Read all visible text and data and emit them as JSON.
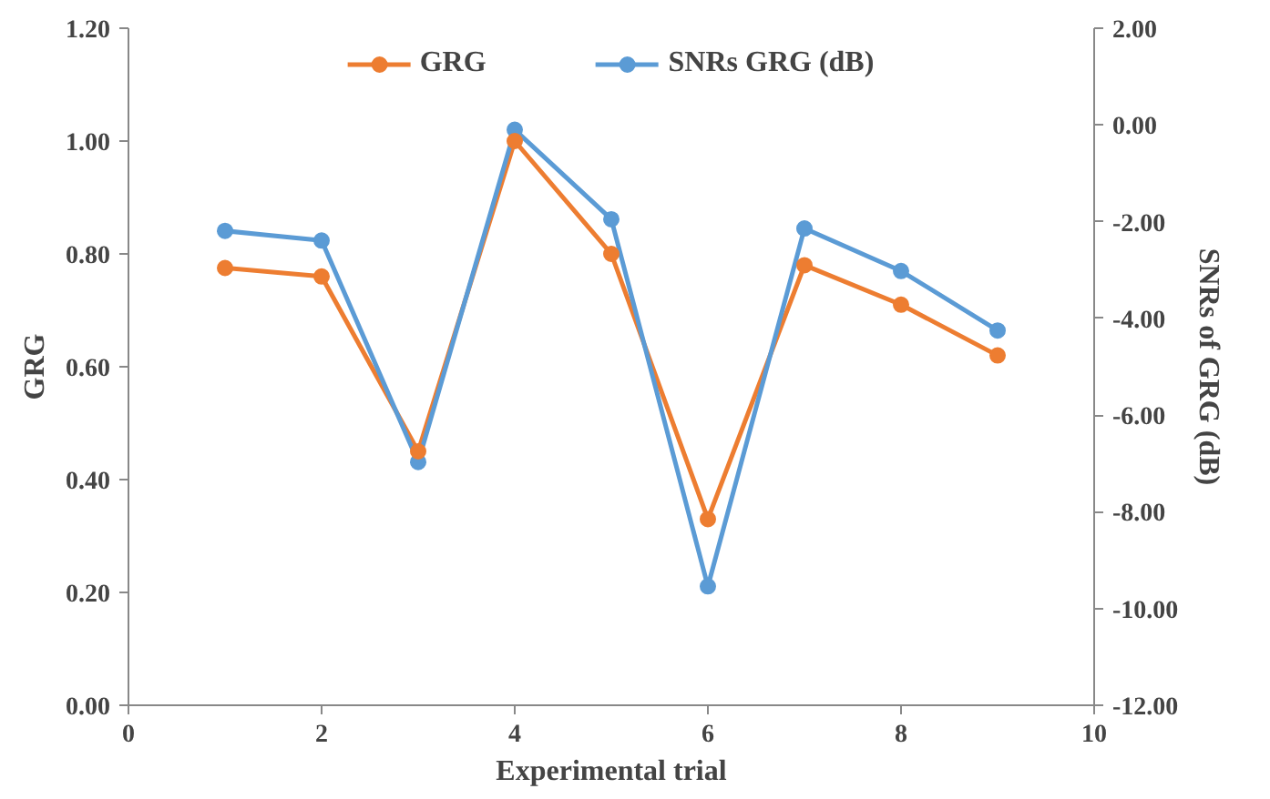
{
  "chart_data": {
    "type": "line",
    "xlabel": "Experimental trial",
    "ylabel": "GRG",
    "y2label": "SNRs of GRG (dB)",
    "x": [
      1,
      2,
      3,
      4,
      5,
      6,
      7,
      8,
      9
    ],
    "series": [
      {
        "name": "GRG",
        "color": "#ed7d31",
        "values": [
          0.775,
          0.76,
          0.45,
          1.0,
          0.8,
          0.33,
          0.78,
          0.71,
          0.62
        ]
      },
      {
        "name": "SNRs GRG (dB)",
        "color": "#5b9bd5",
        "axis": "y2",
        "values": [
          -2.19,
          -2.39,
          -6.97,
          -0.1,
          -1.95,
          -9.54,
          -2.14,
          -3.02,
          -4.25
        ]
      }
    ],
    "xlim": [
      0,
      10
    ],
    "xticks": [
      0,
      2,
      4,
      6,
      8,
      10
    ],
    "ylim": [
      0,
      1.2
    ],
    "yticks": [
      {
        "value": 0,
        "label": "0.00"
      },
      {
        "value": 0.2,
        "label": "0.20"
      },
      {
        "value": 0.4,
        "label": "0.40"
      },
      {
        "value": 0.6,
        "label": "0.60"
      },
      {
        "value": 0.8,
        "label": "0.80"
      },
      {
        "value": 1.0,
        "label": "1.00"
      },
      {
        "value": 1.2,
        "label": "1.20"
      }
    ],
    "y2lim": [
      -12,
      2
    ],
    "y2ticks": [
      {
        "value": -12,
        "label": "-12.00"
      },
      {
        "value": -10,
        "label": "-10.00"
      },
      {
        "value": -8,
        "label": "-8.00"
      },
      {
        "value": -6,
        "label": "-6.00"
      },
      {
        "value": -4,
        "label": "-4.00"
      },
      {
        "value": -2,
        "label": "-2.00"
      },
      {
        "value": 0,
        "label": "0.00"
      },
      {
        "value": 2,
        "label": "2.00"
      }
    ],
    "grid": false,
    "legend": "top",
    "marker": "circle",
    "line_style": "solid"
  }
}
